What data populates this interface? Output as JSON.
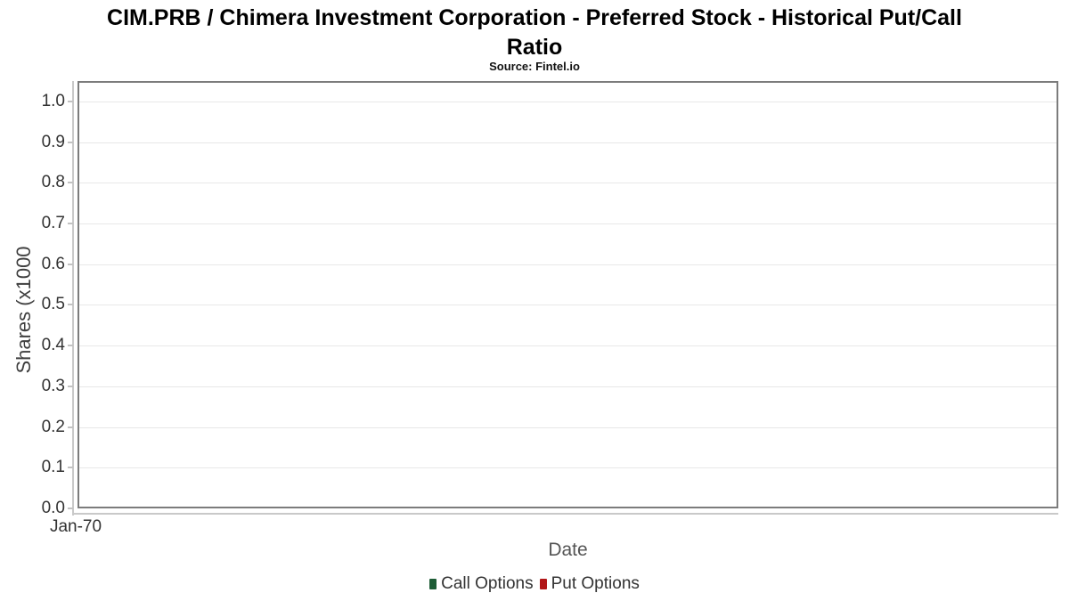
{
  "header": {
    "title": "CIM.PRB / Chimera Investment Corporation - Preferred Stock - Historical Put/Call Ratio",
    "title_line1": "CIM.PRB / Chimera Investment Corporation - Preferred Stock - Historical Put/Call",
    "title_line2": "Ratio",
    "subtitle": "Source: Fintel.io"
  },
  "chart_data": {
    "type": "line",
    "title": "CIM.PRB / Chimera Investment Corporation - Preferred Stock - Historical Put/Call Ratio",
    "subtitle": "Source: Fintel.io",
    "xlabel": "Date",
    "ylabel": "Shares (x1000",
    "ylim": [
      0.0,
      1.05
    ],
    "yticks": [
      0.0,
      0.1,
      0.2,
      0.3,
      0.4,
      0.5,
      0.6,
      0.7,
      0.8,
      0.9,
      1.0
    ],
    "ytick_labels": [
      "0.0",
      "0.1",
      "0.2",
      "0.3",
      "0.4",
      "0.5",
      "0.6",
      "0.7",
      "0.8",
      "0.9",
      "1.0"
    ],
    "xticks": [
      "Jan-70"
    ],
    "grid": true,
    "legend_position": "bottom-center",
    "series": [
      {
        "name": "Call Options",
        "color": "#1d5c35",
        "x": [],
        "values": []
      },
      {
        "name": "Put Options",
        "color": "#b11617",
        "x": [],
        "values": []
      }
    ]
  },
  "colors": {
    "call_options": "#1d5c35",
    "put_options": "#b11617",
    "gridline": "#e8e8e8",
    "plot_frame": "#7c7c7c",
    "axis_line": "#c9c9c9",
    "tick_text": "#333333",
    "axis_title_text": "#3f3f3f",
    "title_text": "#000000"
  }
}
